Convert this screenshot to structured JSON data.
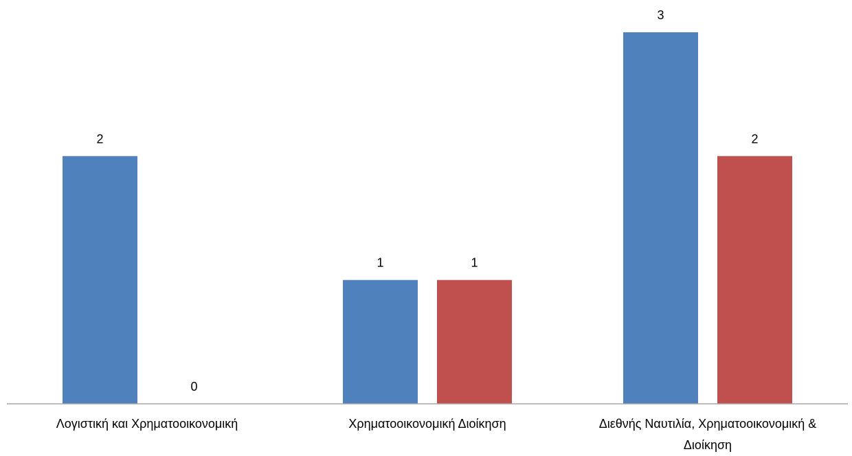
{
  "chart_data": {
    "type": "bar",
    "categories": [
      [
        "Λογιστική και Χρηματοοικονομική"
      ],
      [
        "Χρηματοοικονομική Διοίκηση"
      ],
      [
        "Διεθνής Ναυτιλία, Χρηματοοικονομική &",
        "Διοίκηση"
      ]
    ],
    "series": [
      {
        "values": [
          2,
          1,
          3
        ],
        "color": "#4F81BD"
      },
      {
        "values": [
          0,
          1,
          2
        ],
        "color": "#C0504D"
      }
    ],
    "ylim": [
      0,
      3
    ],
    "grid": false,
    "legend": "none",
    "data_labels": true,
    "axis_color": "#A6A6A6"
  }
}
